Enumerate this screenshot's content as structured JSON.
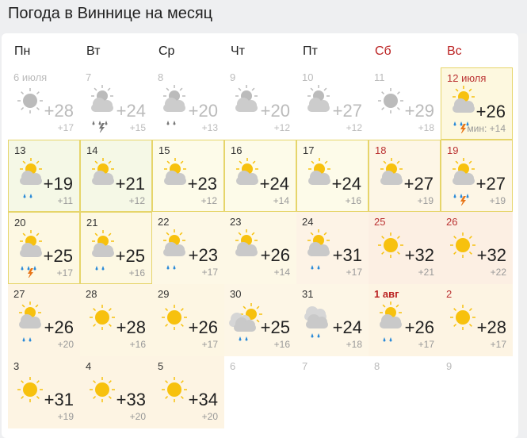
{
  "title": "Погода в Виннице на месяц",
  "weekdays": [
    {
      "label": "Пн"
    },
    {
      "label": "Вт"
    },
    {
      "label": "Ср"
    },
    {
      "label": "Чт"
    },
    {
      "label": "Пт"
    },
    {
      "label": "Сб",
      "weekend": true
    },
    {
      "label": "Вс",
      "weekend": true
    }
  ],
  "colors": {
    "sun": "#f7c10e",
    "cloud": "#c9c9c9",
    "rain": "#2a8ad8",
    "bolt": "#e8761a",
    "border": "#e6d56a",
    "weekend": "#b22222"
  },
  "days": [
    {
      "date": "6 июля",
      "icon": "sun",
      "max": "+28",
      "min": "+17",
      "past": true
    },
    {
      "date": "7",
      "icon": "partly-storm",
      "max": "+24",
      "min": "+15",
      "past": true
    },
    {
      "date": "8",
      "icon": "partly-rain",
      "max": "+20",
      "min": "+13",
      "past": true
    },
    {
      "date": "9",
      "icon": "partly",
      "max": "+20",
      "min": "+12",
      "past": true
    },
    {
      "date": "10",
      "icon": "partly",
      "max": "+27",
      "min": "+12",
      "past": true
    },
    {
      "date": "11",
      "icon": "sun",
      "max": "+29",
      "min": "+18",
      "past": true
    },
    {
      "date": "12 июля",
      "icon": "partly-rain-storm",
      "max": "+26",
      "min": "мин: +14",
      "today": true,
      "bg": "#fdf8df",
      "border": true
    },
    {
      "date": "13",
      "icon": "partly-rain",
      "max": "+19",
      "min": "+11",
      "bg": "#f5f8e6",
      "border": true
    },
    {
      "date": "14",
      "icon": "partly",
      "max": "+21",
      "min": "+12",
      "bg": "#f5f8e6",
      "border": true
    },
    {
      "date": "15",
      "icon": "partly",
      "max": "+23",
      "min": "+12",
      "bg": "#fdfbe9",
      "border": true
    },
    {
      "date": "16",
      "icon": "partly",
      "max": "+24",
      "min": "+14",
      "bg": "#fdfbe9",
      "border": true
    },
    {
      "date": "17",
      "icon": "partly",
      "max": "+24",
      "min": "+16",
      "bg": "#fdfbe9",
      "border": true
    },
    {
      "date": "18",
      "icon": "partly",
      "max": "+27",
      "min": "+19",
      "bg": "#fdf6e6",
      "border": true
    },
    {
      "date": "19",
      "icon": "partly-storm",
      "max": "+27",
      "min": "+19",
      "bg": "#fdf6e6",
      "border": true
    },
    {
      "date": "20",
      "icon": "partly-storm",
      "max": "+25",
      "min": "+17",
      "bg": "#fdf8e3",
      "border": true
    },
    {
      "date": "21",
      "icon": "partly-rain",
      "max": "+25",
      "min": "+16",
      "bg": "#fdf8e3",
      "border": true
    },
    {
      "date": "22",
      "icon": "partly-rain",
      "max": "+23",
      "min": "+17",
      "bg": "#fdf8e6"
    },
    {
      "date": "23",
      "icon": "partly",
      "max": "+26",
      "min": "+14",
      "bg": "#fdf8e6"
    },
    {
      "date": "24",
      "icon": "partly-rain",
      "max": "+31",
      "min": "+17",
      "bg": "#fdf3e6"
    },
    {
      "date": "25",
      "icon": "sun",
      "max": "+32",
      "min": "+21",
      "bg": "#fcefe3"
    },
    {
      "date": "26",
      "icon": "sun",
      "max": "+32",
      "min": "+22",
      "bg": "#fcefe3"
    },
    {
      "date": "27",
      "icon": "partly-rain",
      "max": "+26",
      "min": "+20",
      "bg": "#fdf4e3"
    },
    {
      "date": "28",
      "icon": "sun",
      "max": "+28",
      "min": "+16",
      "bg": "#fdf6e3"
    },
    {
      "date": "29",
      "icon": "sun",
      "max": "+26",
      "min": "+17",
      "bg": "#fdf6e3"
    },
    {
      "date": "30",
      "icon": "cloudy-rain",
      "max": "+25",
      "min": "+16",
      "bg": "#fdf6e6"
    },
    {
      "date": "31",
      "icon": "overcast-rain",
      "max": "+24",
      "min": "+18",
      "bg": "#fdf6e6"
    },
    {
      "date": "1 авг",
      "icon": "partly-rain",
      "max": "+26",
      "min": "+17",
      "bg": "#fdf4e3",
      "bold": true
    },
    {
      "date": "2",
      "icon": "sun",
      "max": "+28",
      "min": "+17",
      "bg": "#fdf4e3"
    },
    {
      "date": "3",
      "icon": "sun",
      "max": "+31",
      "min": "+19",
      "bg": "#fdf4e3"
    },
    {
      "date": "4",
      "icon": "sun",
      "max": "+33",
      "min": "+20",
      "bg": "#fdf4e3"
    },
    {
      "date": "5",
      "icon": "sun",
      "max": "+34",
      "min": "+20",
      "bg": "#fdf4e3"
    },
    {
      "date": "6",
      "past": true
    },
    {
      "date": "7",
      "past": true
    },
    {
      "date": "8",
      "past": true
    },
    {
      "date": "9",
      "past": true
    }
  ]
}
